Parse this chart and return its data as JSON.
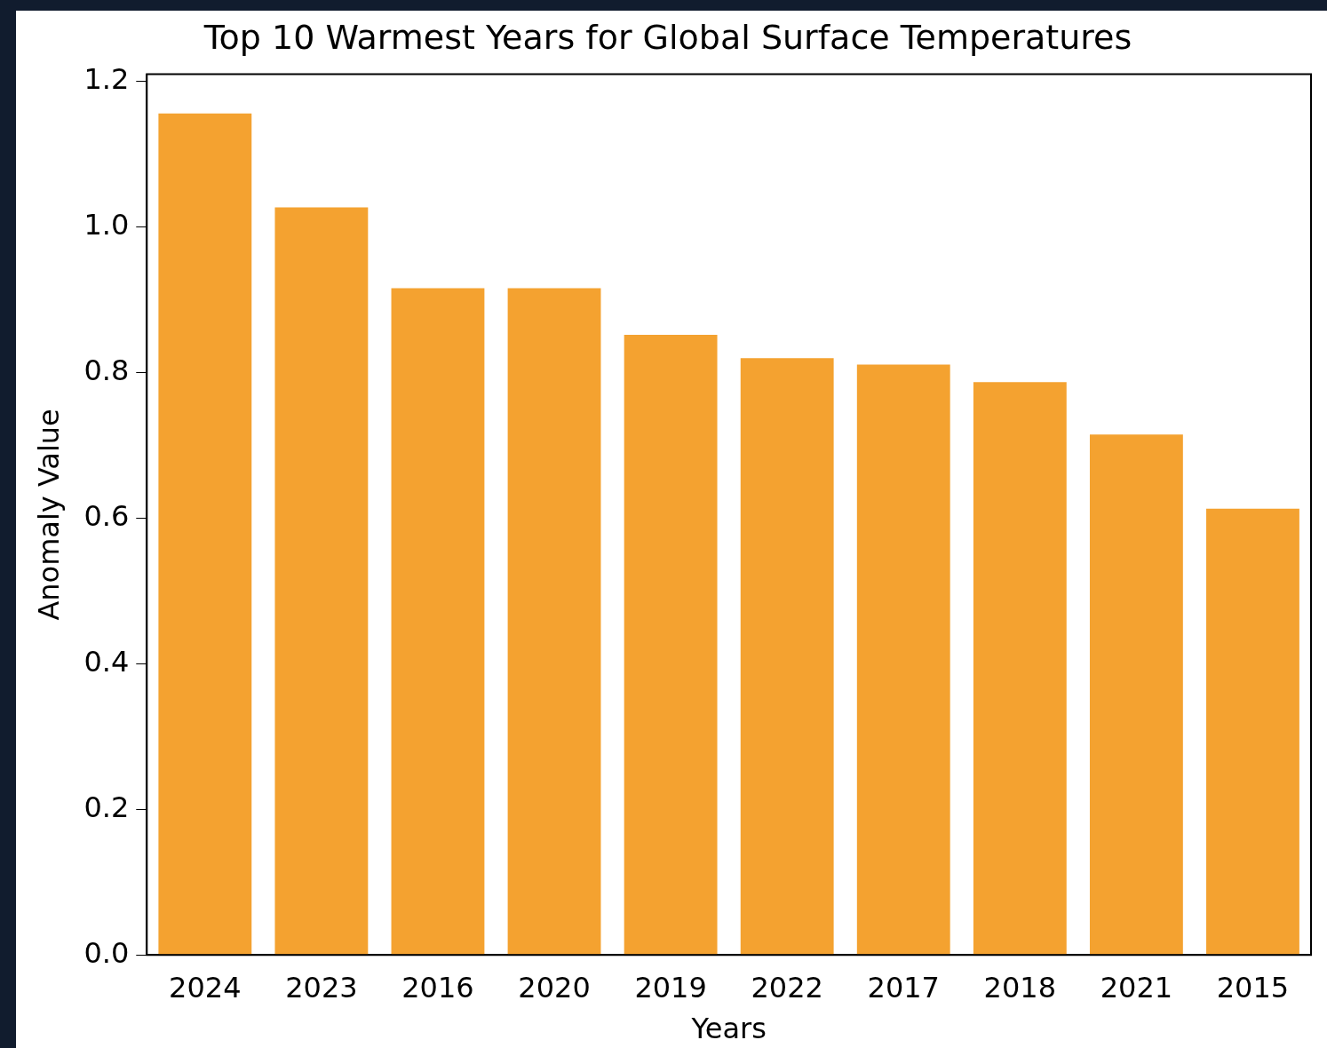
{
  "chart_data": {
    "type": "bar",
    "title": "Top 10 Warmest Years for Global Surface Temperatures",
    "xlabel": "Years",
    "ylabel": "Anomaly Value",
    "categories": [
      "2024",
      "2023",
      "2016",
      "2020",
      "2019",
      "2022",
      "2017",
      "2018",
      "2021",
      "2015"
    ],
    "values": [
      1.156,
      1.027,
      0.916,
      0.916,
      0.852,
      0.82,
      0.811,
      0.787,
      0.715,
      0.613
    ],
    "color": "#f4a230",
    "ylim": [
      0,
      1.21
    ],
    "yticks": [
      {
        "value": 0,
        "label": "0.0"
      },
      {
        "value": 0.2,
        "label": "0.2"
      },
      {
        "value": 0.4,
        "label": "0.4"
      },
      {
        "value": 0.6,
        "label": "0.6"
      },
      {
        "value": 0.8,
        "label": "0.8"
      },
      {
        "value": 1,
        "label": "1.0"
      },
      {
        "value": 1.2,
        "label": "1.2"
      }
    ],
    "grid": false,
    "legend": false
  }
}
